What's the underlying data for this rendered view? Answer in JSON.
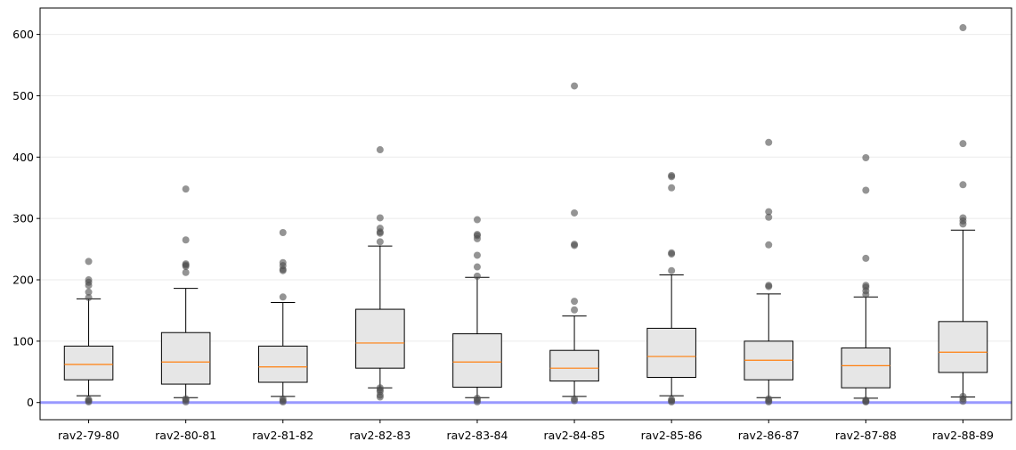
{
  "chart_data": {
    "type": "box",
    "categories": [
      "rav2-79-80",
      "rav2-80-81",
      "rav2-81-82",
      "rav2-82-83",
      "rav2-83-84",
      "rav2-84-85",
      "rav2-85-86",
      "rav2-86-87",
      "rav2-87-88",
      "rav2-88-89"
    ],
    "title": "",
    "xlabel": "",
    "ylabel": "",
    "ylim": [
      -28,
      643
    ],
    "yticks": [
      0,
      100,
      200,
      300,
      400,
      500,
      600
    ],
    "ytick_labels": [
      "0",
      "100",
      "200",
      "300",
      "400",
      "500",
      "600"
    ],
    "grid": "horizontal",
    "reference_line": 0,
    "boxes": [
      {
        "whisker_low": 11,
        "q1": 37,
        "median": 62,
        "q3": 92,
        "whisker_high": 169,
        "outliers": [
          230,
          200,
          196,
          191,
          180,
          171,
          5,
          3,
          1
        ]
      },
      {
        "whisker_low": 8,
        "q1": 30,
        "median": 66,
        "q3": 114,
        "whisker_high": 186,
        "outliers": [
          348,
          265,
          226,
          224,
          222,
          212,
          6,
          4,
          1
        ]
      },
      {
        "whisker_low": 10,
        "q1": 33,
        "median": 58,
        "q3": 92,
        "whisker_high": 163,
        "outliers": [
          277,
          228,
          223,
          217,
          215,
          172,
          6,
          3,
          1
        ]
      },
      {
        "whisker_low": 24,
        "q1": 56,
        "median": 97,
        "q3": 152,
        "whisker_high": 255,
        "outliers": [
          412,
          301,
          284,
          278,
          276,
          262,
          24,
          21,
          18,
          12,
          9
        ]
      },
      {
        "whisker_low": 8,
        "q1": 25,
        "median": 66,
        "q3": 112,
        "whisker_high": 204,
        "outliers": [
          298,
          274,
          272,
          267,
          240,
          221,
          206,
          7,
          4,
          1
        ]
      },
      {
        "whisker_low": 10,
        "q1": 35,
        "median": 56,
        "q3": 85,
        "whisker_high": 141,
        "outliers": [
          516,
          309,
          258,
          256,
          165,
          151,
          6,
          3
        ]
      },
      {
        "whisker_low": 11,
        "q1": 41,
        "median": 75,
        "q3": 121,
        "whisker_high": 208,
        "outliers": [
          370,
          368,
          350,
          244,
          242,
          215,
          5,
          3,
          1
        ]
      },
      {
        "whisker_low": 8,
        "q1": 37,
        "median": 69,
        "q3": 100,
        "whisker_high": 177,
        "outliers": [
          424,
          311,
          302,
          257,
          191,
          189,
          6,
          3,
          1
        ]
      },
      {
        "whisker_low": 7,
        "q1": 24,
        "median": 60,
        "q3": 89,
        "whisker_high": 172,
        "outliers": [
          399,
          346,
          235,
          191,
          188,
          182,
          176,
          4,
          2,
          1
        ]
      },
      {
        "whisker_low": 9,
        "q1": 49,
        "median": 82,
        "q3": 132,
        "whisker_high": 281,
        "outliers": [
          611,
          422,
          355,
          301,
          296,
          291,
          10,
          6,
          2
        ]
      }
    ],
    "colors": {
      "box_fill": "#e6e6e6",
      "box_edge": "#000000",
      "median": "#ff7f0e",
      "outlier": "#4d4d4d",
      "reference_line": "#9999ff",
      "grid": "#ebebeb"
    }
  }
}
